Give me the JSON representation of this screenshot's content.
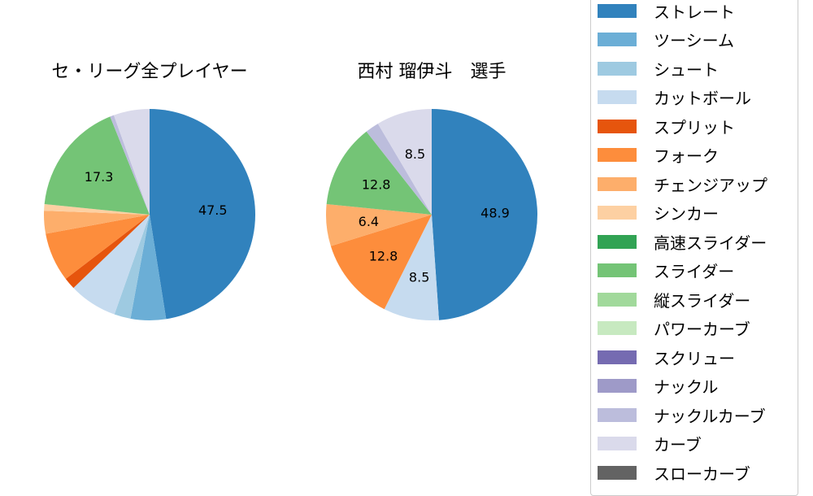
{
  "chart_data": [
    {
      "type": "pie",
      "title": "セ・リーグ全プレイヤー",
      "start_angle": 90,
      "direction": "clockwise",
      "categories": [
        "ストレート",
        "ツーシーム",
        "シュート",
        "カットボール",
        "スプリット",
        "フォーク",
        "チェンジアップ",
        "シンカー",
        "スライダー",
        "ナックルカーブ",
        "カーブ"
      ],
      "values": [
        47.5,
        5.4,
        2.5,
        7.4,
        1.8,
        7.5,
        3.5,
        1.0,
        17.3,
        0.6,
        5.5
      ],
      "labels_shown": {
        "ストレート": "47.5",
        "スライダー": "17.3"
      }
    },
    {
      "type": "pie",
      "title": "西村 瑠伊斗　選手",
      "start_angle": 90,
      "direction": "clockwise",
      "categories": [
        "ストレート",
        "カットボール",
        "フォーク",
        "チェンジアップ",
        "スライダー",
        "ナックルカーブ",
        "カーブ"
      ],
      "values": [
        48.9,
        8.5,
        12.8,
        6.4,
        12.8,
        2.1,
        8.5
      ],
      "labels_shown": {
        "ストレート": "48.9",
        "カットボール": "8.5",
        "フォーク": "12.8",
        "チェンジアップ": "6.4",
        "スライダー": "12.8",
        "カーブ": "8.5"
      }
    }
  ],
  "legend": {
    "items": [
      {
        "label": "ストレート",
        "color": "#3182bd"
      },
      {
        "label": "ツーシーム",
        "color": "#6baed6"
      },
      {
        "label": "シュート",
        "color": "#9ecae1"
      },
      {
        "label": "カットボール",
        "color": "#c6dbef"
      },
      {
        "label": "スプリット",
        "color": "#e6550d"
      },
      {
        "label": "フォーク",
        "color": "#fd8d3c"
      },
      {
        "label": "チェンジアップ",
        "color": "#fdae6b"
      },
      {
        "label": "シンカー",
        "color": "#fdd0a2"
      },
      {
        "label": "高速スライダー",
        "color": "#31a354"
      },
      {
        "label": "スライダー",
        "color": "#74c476"
      },
      {
        "label": "縦スライダー",
        "color": "#a1d99b"
      },
      {
        "label": "パワーカーブ",
        "color": "#c7e9c0"
      },
      {
        "label": "スクリュー",
        "color": "#756bb1"
      },
      {
        "label": "ナックル",
        "color": "#9e9ac8"
      },
      {
        "label": "ナックルカーブ",
        "color": "#bcbddc"
      },
      {
        "label": "カーブ",
        "color": "#dadaeb"
      },
      {
        "label": "スローカーブ",
        "color": "#636363"
      }
    ]
  },
  "titles": {
    "left": "セ・リーグ全プレイヤー",
    "right": "西村 瑠伊斗　選手"
  }
}
